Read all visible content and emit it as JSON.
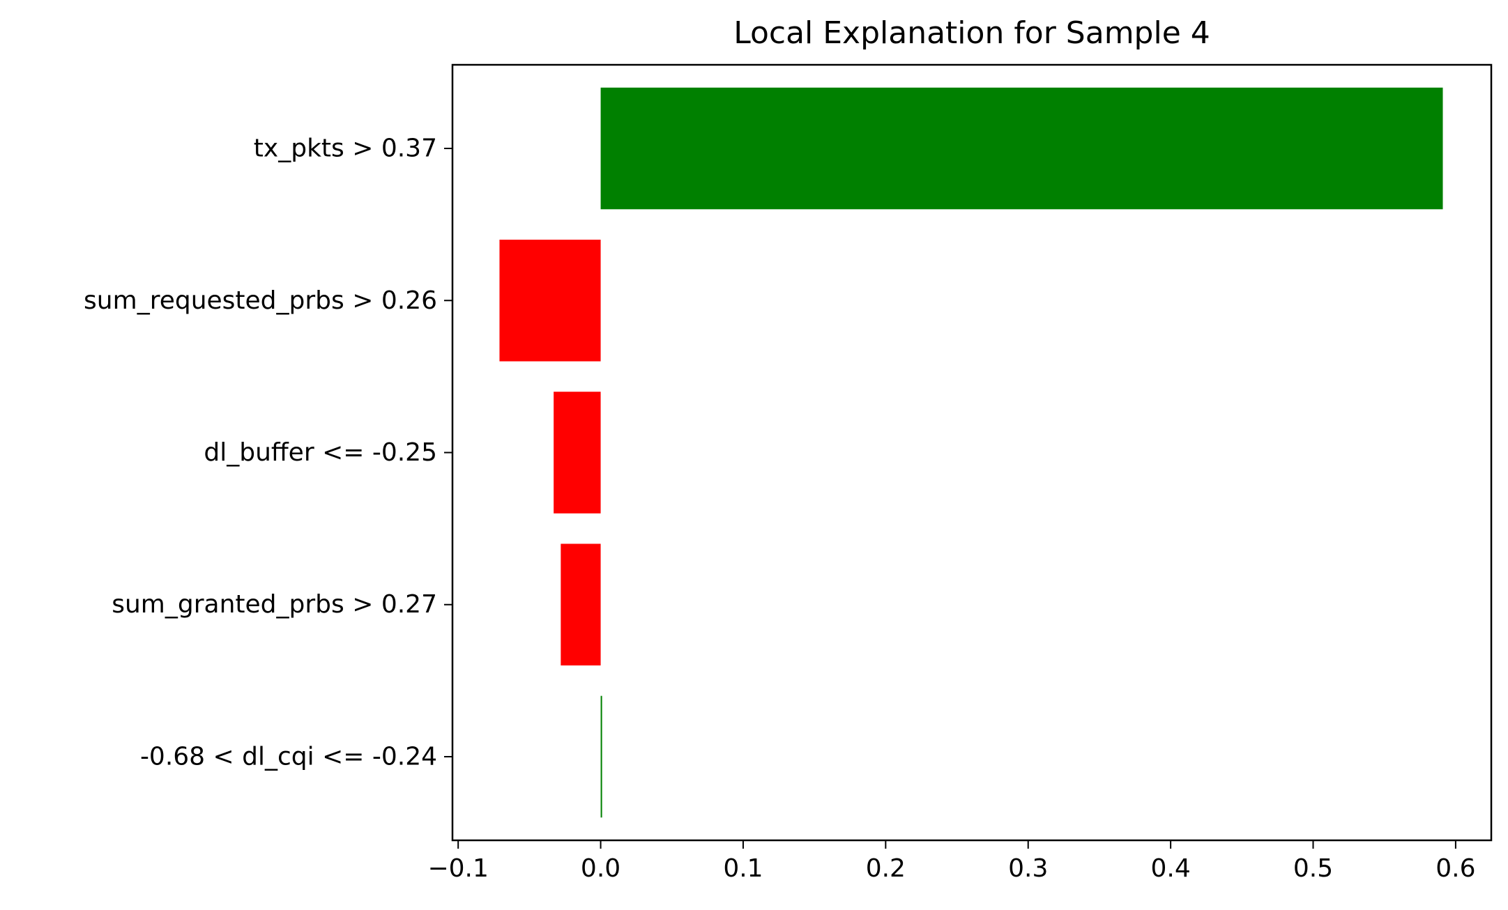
{
  "chart_data": {
    "type": "bar",
    "orientation": "horizontal",
    "title": "Local Explanation for Sample 4",
    "xlabel": "",
    "ylabel": "",
    "categories": [
      "tx_pkts > 0.37",
      "sum_requested_prbs > 0.26",
      "dl_buffer <= -0.25",
      "sum_granted_prbs > 0.27",
      "-0.68 < dl_cqi <= -0.24"
    ],
    "values": [
      0.591,
      -0.071,
      -0.033,
      -0.028,
      0.001
    ],
    "xlim": [
      -0.104,
      0.625
    ],
    "xticks": [
      -0.1,
      0.0,
      0.1,
      0.2,
      0.3,
      0.4,
      0.5,
      0.6
    ],
    "xtick_labels": [
      "−0.1",
      "0.0",
      "0.1",
      "0.2",
      "0.3",
      "0.4",
      "0.5",
      "0.6"
    ],
    "grid": false,
    "legend": "none",
    "colors": {
      "positive": "#008000",
      "negative": "#ff0000"
    }
  }
}
